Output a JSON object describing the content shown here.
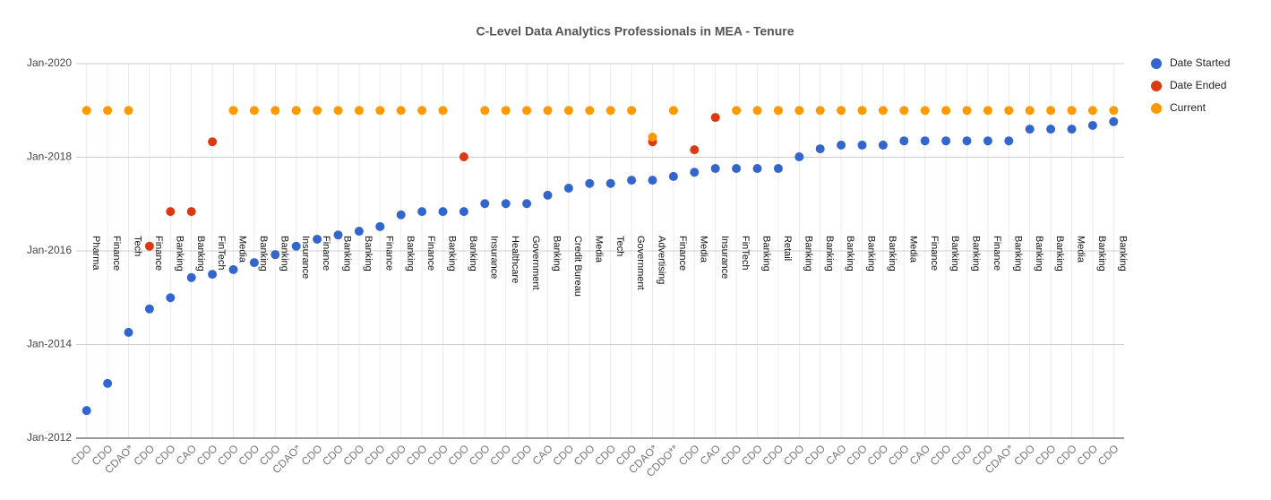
{
  "chart_data": {
    "type": "scatter",
    "title": "C-Level Data Analytics Professionals in MEA - Tenure",
    "categories": [
      "CDO",
      "CDO",
      "CDAO*",
      "CDO",
      "CDO",
      "CAO",
      "CDO",
      "CDO",
      "CDO",
      "CDO",
      "CDAO*",
      "CDO",
      "CDO",
      "CDO",
      "CDO",
      "CDO",
      "CDO",
      "CDO",
      "CDO",
      "CDO",
      "CDO",
      "CDO",
      "CAO",
      "CDO",
      "CDO",
      "CDO",
      "CDO",
      "CDAO*",
      "CDDO**",
      "CDO",
      "CAO",
      "CDO",
      "CDO",
      "CDO",
      "CDO",
      "CDO",
      "CAO",
      "CDO",
      "CDO",
      "CDO",
      "CAO",
      "CDO",
      "CDO",
      "CDO",
      "CDAO*",
      "CDO",
      "CDO",
      "CDO",
      "CDO",
      "CDO"
    ],
    "industries": [
      "Pharma",
      "Finance",
      "Tech",
      "Finance",
      "Banking",
      "Banking",
      "FinTech",
      "Media",
      "Banking",
      "Banking",
      "Insurance",
      "Finance",
      "Banking",
      "Banking",
      "Finance",
      "Banking",
      "Finance",
      "Banking",
      "Banking",
      "Insurance",
      "Healthcare",
      "Government",
      "Banking",
      "Credit Bureau",
      "Media",
      "Tech",
      "Government",
      "Advertising",
      "Finance",
      "Media",
      "Insurance",
      "FinTech",
      "Banking",
      "Retail",
      "Banking",
      "Banking",
      "Banking",
      "Banking",
      "Banking",
      "Media",
      "Finance",
      "Banking",
      "Banking",
      "Finance",
      "Banking",
      "Banking",
      "Banking",
      "Media",
      "Banking",
      "Banking"
    ],
    "series": [
      {
        "name": "Date Started",
        "color": "#3366cc",
        "values": [
          2012.59,
          2013.17,
          2014.26,
          2014.76,
          2015.0,
          2015.43,
          2015.5,
          2015.6,
          2015.75,
          2015.92,
          2016.1,
          2016.25,
          2016.34,
          2016.42,
          2016.52,
          2016.77,
          2016.84,
          2016.84,
          2016.84,
          2017.01,
          2017.01,
          2017.01,
          2017.19,
          2017.34,
          2017.44,
          2017.44,
          2017.51,
          2017.51,
          2017.59,
          2017.68,
          2017.76,
          2017.76,
          2017.76,
          2017.76,
          2018.01,
          2018.18,
          2018.26,
          2018.26,
          2018.26,
          2018.35,
          2018.35,
          2018.35,
          2018.35,
          2018.35,
          2018.35,
          2018.6,
          2018.6,
          2018.6,
          2018.68,
          2018.76
        ]
      },
      {
        "name": "Date Ended",
        "color": "#dc3912",
        "values": [
          null,
          null,
          null,
          2016.1,
          2016.84,
          2016.84,
          2018.33,
          null,
          null,
          null,
          null,
          null,
          null,
          null,
          null,
          null,
          null,
          null,
          2018.01,
          null,
          null,
          null,
          null,
          null,
          null,
          null,
          null,
          2018.33,
          null,
          2018.16,
          2018.85,
          null,
          null,
          null,
          null,
          null,
          null,
          null,
          null,
          null,
          null,
          null,
          null,
          null,
          null,
          null,
          null,
          null,
          null,
          null
        ]
      },
      {
        "name": "Current",
        "color": "#ff9900",
        "values": [
          2019.0,
          2019.0,
          2019.0,
          null,
          null,
          null,
          null,
          2019.0,
          2019.0,
          2019.0,
          2019.0,
          2019.0,
          2019.0,
          2019.0,
          2019.0,
          2019.0,
          2019.0,
          2019.0,
          null,
          2019.0,
          2019.0,
          2019.0,
          2019.0,
          2019.0,
          2019.0,
          2019.0,
          2019.0,
          2018.43,
          2019.0,
          null,
          null,
          2019.0,
          2019.0,
          2019.0,
          2019.0,
          2019.0,
          2019.0,
          2019.0,
          2019.0,
          2019.0,
          2019.0,
          2019.0,
          2019.0,
          2019.0,
          2019.0,
          2019.0,
          2019.0,
          2019.0,
          2019.0,
          2019.0
        ]
      }
    ],
    "ylim": [
      2012,
      2020
    ],
    "yticks": [
      {
        "value": 2012,
        "label": "Jan-2012"
      },
      {
        "value": 2014,
        "label": "Jan-2014"
      },
      {
        "value": 2016,
        "label": "Jan-2016"
      },
      {
        "value": 2018,
        "label": "Jan-2018"
      },
      {
        "value": 2020,
        "label": "Jan-2020"
      }
    ],
    "grid": true,
    "legend": "right"
  }
}
